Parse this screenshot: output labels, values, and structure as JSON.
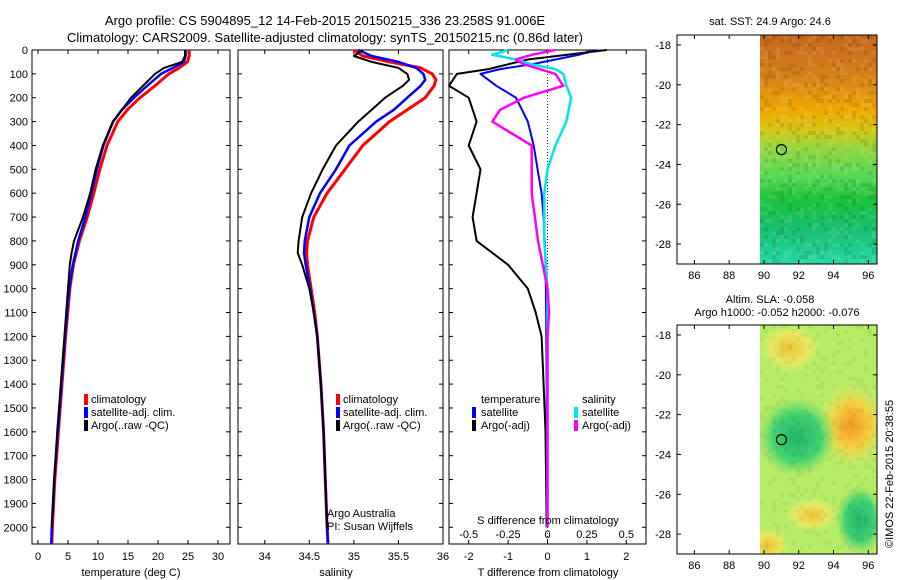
{
  "figure": {
    "title_line1": "Argo profile: CS 5904895_12 14-Feb-2015 20150215_336 23.258S 91.006E",
    "title_line2": "Climatology: CARS2009. Satellite-adjusted climatology: synTS_20150215.nc (0.86d later)",
    "credit": "©IMOS 22-Feb-2015 20:38:55"
  },
  "colors": {
    "climatology": "#ff0000",
    "satellite_adj": "#0000ff",
    "argo": "#000000",
    "sal_satellite": "#00e5e5",
    "sal_argo": "#ff00ff"
  },
  "chart_data": [
    {
      "type": "line",
      "name": "temperature",
      "xlabel": "temperature (deg C)",
      "xlim": [
        -1,
        32
      ],
      "xticks": [
        "0",
        "5",
        "10",
        "15",
        "20",
        "25",
        "30"
      ],
      "ylim": [
        0,
        2070
      ],
      "yticks": [
        "0",
        "100",
        "200",
        "300",
        "400",
        "500",
        "600",
        "700",
        "800",
        "900",
        "1000",
        "1100",
        "1200",
        "1300",
        "1400",
        "1500",
        "1600",
        "1700",
        "1800",
        "1900",
        "2000"
      ],
      "legend": [
        "climatology",
        "satellite-adj. clim.",
        "Argo(..raw -QC)"
      ],
      "series": [
        {
          "name": "climatology",
          "depth": [
            0,
            25,
            50,
            75,
            100,
            150,
            200,
            250,
            300,
            400,
            500,
            600,
            700,
            800,
            900,
            1000,
            1200,
            1400,
            1600,
            1800,
            2000,
            2070
          ],
          "values": [
            25.2,
            25.2,
            24.9,
            23.5,
            21.8,
            19.5,
            17.0,
            14.9,
            13.3,
            11.5,
            10.3,
            9.3,
            8.2,
            6.9,
            5.9,
            5.3,
            4.6,
            4.0,
            3.4,
            2.8,
            2.4,
            2.3
          ]
        },
        {
          "name": "satellite-adj. clim.",
          "depth": [
            0,
            25,
            50,
            75,
            100,
            150,
            200,
            250,
            300,
            400,
            500,
            600,
            700,
            800,
            900,
            1000,
            1200,
            1400,
            1600,
            1800,
            2000,
            2070
          ],
          "values": [
            24.6,
            24.6,
            24.3,
            22.5,
            20.5,
            18.2,
            16.0,
            14.0,
            12.5,
            10.9,
            9.8,
            8.9,
            7.9,
            6.7,
            5.8,
            5.2,
            4.5,
            3.9,
            3.3,
            2.7,
            2.3,
            2.2
          ]
        },
        {
          "name": "Argo(..raw -QC)",
          "depth": [
            0,
            25,
            50,
            75,
            100,
            150,
            200,
            250,
            300,
            400,
            500,
            600,
            700,
            800,
            850,
            900,
            1000,
            1200,
            1400,
            1600,
            1800,
            2000
          ],
          "values": [
            24.5,
            24.5,
            24.0,
            21.0,
            19.5,
            17.5,
            15.5,
            14.0,
            12.5,
            10.8,
            9.6,
            8.7,
            7.5,
            6.0,
            5.6,
            5.3,
            5.0,
            4.4,
            3.8,
            3.2,
            2.7,
            2.3
          ]
        }
      ]
    },
    {
      "type": "line",
      "name": "salinity",
      "xlabel": "salinity",
      "xlim": [
        33.7,
        36.0
      ],
      "xticks": [
        "34",
        "34.5",
        "35",
        "35.5",
        "36"
      ],
      "ylim": [
        0,
        2070
      ],
      "legend": [
        "climatology",
        "satellite-adj. clim.",
        "Argo(..raw -QC)"
      ],
      "annotation": [
        "Argo Australia",
        "PI: Susan Wijffels"
      ],
      "series": [
        {
          "name": "climatology",
          "depth": [
            0,
            25,
            50,
            75,
            100,
            125,
            150,
            200,
            250,
            300,
            400,
            500,
            600,
            700,
            800,
            850,
            900,
            1000,
            1100,
            1200,
            1400,
            1600,
            1800,
            2000,
            2070
          ],
          "values": [
            35.0,
            35.1,
            35.4,
            35.75,
            35.88,
            35.92,
            35.9,
            35.8,
            35.6,
            35.4,
            35.1,
            34.9,
            34.7,
            34.55,
            34.48,
            34.47,
            34.48,
            34.52,
            34.56,
            34.59,
            34.63,
            34.66,
            34.68,
            34.7,
            34.71
          ]
        },
        {
          "name": "satellite-adj. clim.",
          "depth": [
            0,
            25,
            50,
            75,
            100,
            125,
            150,
            200,
            250,
            300,
            400,
            500,
            600,
            700,
            800,
            850,
            900,
            1000,
            1100,
            1200,
            1400,
            1600,
            1800,
            2000,
            2070
          ],
          "values": [
            35.05,
            35.2,
            35.5,
            35.7,
            35.78,
            35.8,
            35.75,
            35.6,
            35.45,
            35.25,
            34.95,
            34.8,
            34.62,
            34.5,
            34.45,
            34.44,
            34.46,
            34.51,
            34.55,
            34.59,
            34.63,
            34.66,
            34.68,
            34.7,
            34.71
          ]
        },
        {
          "name": "Argo(..raw -QC)",
          "depth": [
            0,
            25,
            50,
            75,
            100,
            125,
            150,
            200,
            250,
            300,
            400,
            500,
            600,
            700,
            800,
            850,
            900,
            1000,
            1100,
            1200,
            1400,
            1600,
            1800,
            2000
          ],
          "values": [
            35.1,
            35.0,
            35.2,
            35.5,
            35.6,
            35.62,
            35.55,
            35.35,
            35.2,
            35.05,
            34.8,
            34.65,
            34.52,
            34.42,
            34.38,
            34.37,
            34.42,
            34.5,
            34.55,
            34.59,
            34.63,
            34.66,
            34.68,
            34.7
          ]
        }
      ]
    },
    {
      "type": "line",
      "name": "differences",
      "xlabel": "T difference from climatology",
      "xlabel2": "S difference from climatology",
      "xlim": [
        -2.5,
        2.5
      ],
      "xticks": [
        "-2",
        "-1",
        "0",
        "1",
        "2"
      ],
      "xticks2": [
        "-0.5",
        "-0.25",
        "0",
        "0.25",
        "0.5"
      ],
      "legend_temperature": {
        "heading": "temperature",
        "items": [
          "satellite",
          "Argo(-adj)"
        ]
      },
      "legend_salinity": {
        "heading": "salinity",
        "items": [
          "satellite",
          "Argo(-adj)"
        ]
      },
      "series": [
        {
          "name": "temperature satellite",
          "depth": [
            0,
            20,
            40,
            60,
            80,
            100,
            150,
            200,
            300,
            400,
            500,
            600,
            700,
            800,
            900,
            1000,
            1200,
            1400,
            1600,
            2000
          ],
          "values": [
            1.2,
            0.8,
            0.2,
            -0.4,
            -1.2,
            -1.7,
            -1.3,
            -0.8,
            -0.5,
            -0.35,
            -0.25,
            -0.15,
            -0.1,
            -0.07,
            -0.05,
            -0.04,
            -0.03,
            -0.02,
            -0.02,
            -0.02
          ]
        },
        {
          "name": "temperature Argo(-adj)",
          "depth": [
            0,
            20,
            40,
            60,
            80,
            100,
            150,
            200,
            300,
            400,
            500,
            600,
            700,
            800,
            900,
            1000,
            1100,
            1200,
            1400,
            1600,
            2000
          ],
          "values": [
            1.5,
            0.5,
            -0.5,
            -1.0,
            -1.5,
            -2.3,
            -2.5,
            -2.0,
            -1.8,
            -2.0,
            -1.7,
            -1.8,
            -1.9,
            -1.8,
            -1.0,
            -0.5,
            -0.3,
            -0.15,
            -0.1,
            -0.05,
            -0.02
          ]
        },
        {
          "name": "salinity satellite",
          "depth": [
            0,
            20,
            40,
            60,
            80,
            100,
            150,
            200,
            300,
            400,
            500,
            600,
            700,
            800,
            900,
            1000,
            1200,
            1400,
            1600,
            2000
          ],
          "values": [
            -0.25,
            -0.35,
            -0.2,
            -0.1,
            0.05,
            0.1,
            0.12,
            0.15,
            0.12,
            0.05,
            0.0,
            -0.02,
            -0.02,
            -0.02,
            -0.01,
            0.0,
            0.0,
            0.0,
            0.0,
            0.0
          ]
        },
        {
          "name": "salinity Argo(-adj)",
          "depth": [
            0,
            20,
            40,
            60,
            80,
            100,
            150,
            200,
            250,
            300,
            400,
            500,
            600,
            700,
            800,
            900,
            1000,
            1100,
            1200,
            1400,
            1600,
            1800,
            2000
          ],
          "values": [
            0.05,
            -0.1,
            -0.2,
            -0.15,
            -0.05,
            0.05,
            0.1,
            -0.15,
            -0.3,
            -0.35,
            -0.1,
            -0.1,
            -0.1,
            -0.08,
            -0.06,
            -0.03,
            0.0,
            0.01,
            0.0,
            0.0,
            0.0,
            0.0,
            0.0
          ]
        }
      ]
    },
    {
      "type": "heatmap",
      "name": "satellite SST map",
      "title": "sat. SST: 24.9  Argo: 24.6",
      "xlim": [
        85,
        96.5
      ],
      "ylim": [
        -29,
        -17.5
      ],
      "xticks": [
        "86",
        "88",
        "90",
        "92",
        "94",
        "96"
      ],
      "yticks": [
        "-18",
        "-20",
        "-22",
        "-24",
        "-26",
        "-28"
      ],
      "data_start_lon": 90,
      "profile_location": {
        "lon": 91.006,
        "lat": -23.258
      }
    },
    {
      "type": "heatmap",
      "name": "altimetry SLA map",
      "title_line1": "Altim. SLA: -0.058",
      "title_line2": "Argo h1000: -0.052 h2000: -0.076",
      "xlim": [
        85,
        96.5
      ],
      "ylim": [
        -29,
        -17.5
      ],
      "xticks": [
        "86",
        "88",
        "90",
        "92",
        "94",
        "96"
      ],
      "yticks": [
        "-18",
        "-20",
        "-22",
        "-24",
        "-26",
        "-28"
      ],
      "data_start_lon": 90,
      "profile_location": {
        "lon": 91.006,
        "lat": -23.258
      }
    }
  ]
}
